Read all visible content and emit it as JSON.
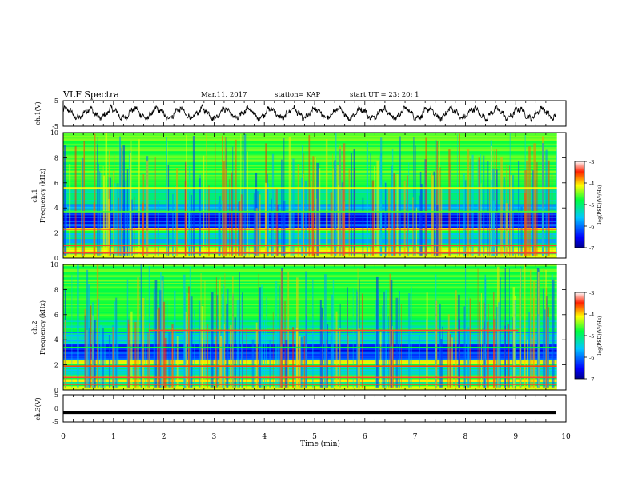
{
  "header": {
    "title": "VLF Spectra",
    "date": "Mar.11, 2017",
    "station": "station= KAP",
    "start": "start  UT =   23: 20: 1"
  },
  "chart_data": [
    {
      "type": "line",
      "panel": "ch1-waveform",
      "ylabel": "ch.1(V)",
      "ylim": [
        -5,
        5
      ],
      "yticks": [
        "5",
        "-5"
      ],
      "xlim": [
        0,
        10
      ],
      "description_values": {
        "approx_amplitude_V": 2.5,
        "approx_period_min": 0.45
      },
      "x": [
        0,
        0.5,
        1,
        1.5,
        2,
        2.5,
        3,
        3.5,
        4,
        4.5,
        5,
        5.5,
        6,
        6.5,
        7,
        7.5,
        8,
        8.5,
        9,
        9.5,
        9.8
      ],
      "values": [
        0,
        1.5,
        -1.8,
        1.2,
        -1.5,
        1.8,
        -2.0,
        1.5,
        -1.2,
        1.9,
        -2.1,
        1.7,
        -1.6,
        2.0,
        -1.8,
        1.6,
        -1.9,
        1.8,
        -1.5,
        1.7,
        -1.0
      ]
    },
    {
      "type": "heatmap",
      "panel": "ch1-spectrogram",
      "ylabel": "ch.1\nFrequency (kHz)",
      "ylim": [
        0,
        10
      ],
      "yticks": [
        "0",
        "2",
        "4",
        "6",
        "8",
        "10"
      ],
      "xlim": [
        0,
        10
      ],
      "colorbar": {
        "label": "log(PSD)(V²/Hz)",
        "range": [
          -7,
          -3
        ],
        "ticks": [
          "-3",
          "-4",
          "-5",
          "-6",
          "-7"
        ]
      }
    },
    {
      "type": "heatmap",
      "panel": "ch2-spectrogram",
      "ylabel": "ch.2\nFrequency (kHz)",
      "ylim": [
        0,
        10
      ],
      "yticks": [
        "0",
        "2",
        "4",
        "6",
        "8",
        "10"
      ],
      "xlim": [
        0,
        10
      ],
      "colorbar": {
        "label": "log(PSD)(V²/Hz)",
        "range": [
          -7,
          -3
        ],
        "ticks": [
          "-3",
          "-4",
          "-5",
          "-6",
          "-7"
        ]
      }
    },
    {
      "type": "line",
      "panel": "ch3-waveform",
      "ylabel": "ch.3(V)",
      "ylim": [
        -5,
        5
      ],
      "yticks": [
        "5",
        "0",
        "-5"
      ],
      "xlim": [
        0,
        10
      ],
      "x": [
        0,
        9.8
      ],
      "values": [
        -1.5,
        -1.5
      ]
    }
  ],
  "xaxis": {
    "label": "Time  (min)",
    "ticks": [
      "0",
      "1",
      "2",
      "3",
      "4",
      "5",
      "6",
      "7",
      "8",
      "9",
      "10"
    ]
  },
  "labels": {
    "ch1": "ch.1(V)",
    "ch1_spec_a": "ch.1",
    "ch1_spec_b": "Frequency (kHz)",
    "ch2_spec_a": "ch.2",
    "ch2_spec_b": "Frequency (kHz)",
    "ch3": "ch.3(V)",
    "cb_label": "log(PSD)(V²/Hz)"
  },
  "colors": {
    "low": "#00008b",
    "mid": "#00ff00",
    "high": "#ff0000"
  }
}
